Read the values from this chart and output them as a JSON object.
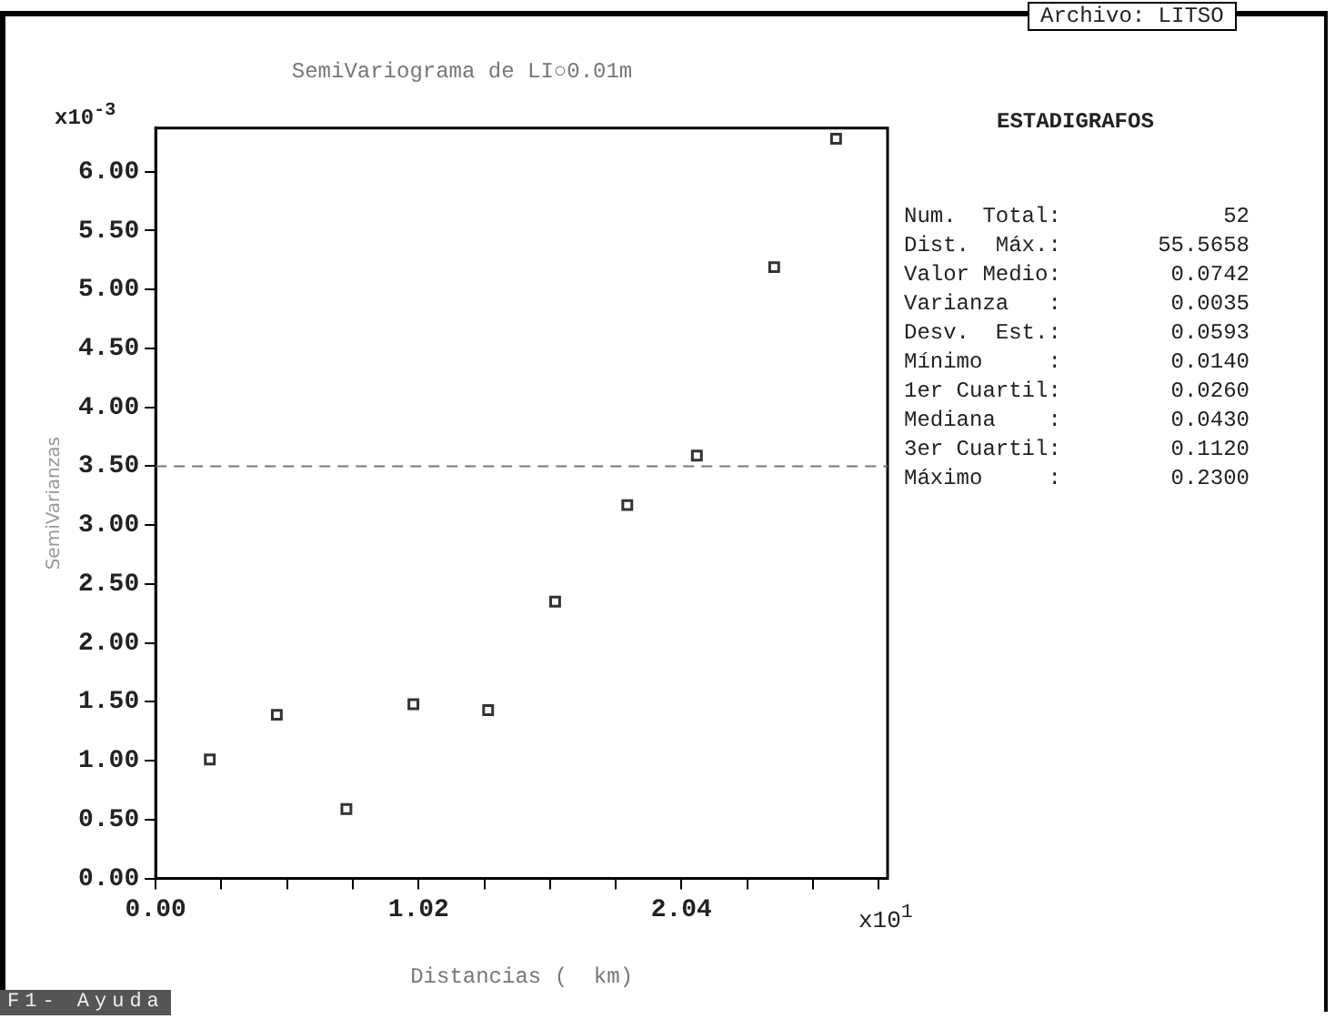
{
  "chart_data": {
    "type": "scatter",
    "title": "SemiVariograma de LI○0.01m",
    "xlabel": "Distancias (  km)",
    "ylabel": "SemiVarianzas",
    "x": [
      0.21,
      0.47,
      0.74,
      1.0,
      1.29,
      1.55,
      1.83,
      2.1,
      2.4,
      2.64
    ],
    "series": [
      {
        "color": "#333333",
        "values": [
          1.01,
          1.39,
          0.59,
          1.48,
          1.43,
          2.35,
          3.17,
          3.59,
          5.19,
          6.28
        ]
      }
    ],
    "marker": "square",
    "grid": false,
    "legend": false,
    "xlim": [
      0,
      2.84
    ],
    "xticks": [
      {
        "value": 0,
        "label": "0.00"
      },
      {
        "value": 0.255,
        "label": null
      },
      {
        "value": 0.51,
        "label": null
      },
      {
        "value": 0.765,
        "label": null
      },
      {
        "value": 1.02,
        "label": "1.02"
      },
      {
        "value": 1.275,
        "label": null
      },
      {
        "value": 1.53,
        "label": null
      },
      {
        "value": 1.785,
        "label": null
      },
      {
        "value": 2.04,
        "label": "2.04"
      },
      {
        "value": 2.295,
        "label": null
      },
      {
        "value": 2.55,
        "label": null
      },
      {
        "value": 2.805,
        "label": null
      }
    ],
    "ylim": [
      0,
      6.37
    ],
    "yticks": [
      {
        "value": 0,
        "label": "0.00"
      },
      {
        "value": 0.5,
        "label": "0.50"
      },
      {
        "value": 1,
        "label": "1.00"
      },
      {
        "value": 1.5,
        "label": "1.50"
      },
      {
        "value": 2,
        "label": "2.00"
      },
      {
        "value": 2.5,
        "label": "2.50"
      },
      {
        "value": 3,
        "label": "3.00"
      },
      {
        "value": 3.5,
        "label": "3.50"
      },
      {
        "value": 4,
        "label": "4.00"
      },
      {
        "value": 4.5,
        "label": "4.50"
      },
      {
        "value": 5,
        "label": "5.00"
      },
      {
        "value": 5.5,
        "label": "5.50"
      },
      {
        "value": 6,
        "label": "6.00"
      }
    ],
    "ref_lines": [
      {
        "axis": "y",
        "value": 3.5,
        "color": "#777777",
        "line_style": "dashed"
      }
    ],
    "annotations": [
      "x10$^{-3}$",
      "x10$^{1}$",
      "Archivo: LITSO",
      "ESTADIGRAFOS",
      "Num.  Total:",
      "52",
      "Dist.  Máx.:",
      "55.5658",
      "Valor Medio:",
      "0.0742",
      "Varianza   :",
      "0.0035",
      "Desv.  Est.:",
      "0.0593",
      "Mínimo     :",
      "0.0140",
      "1er Cuartil:",
      "0.0260",
      "Mediana    :",
      "0.0430",
      "3er Cuartil:",
      "0.1120",
      "Máximo     :",
      "0.2300",
      "F1- Ayuda"
    ]
  }
}
